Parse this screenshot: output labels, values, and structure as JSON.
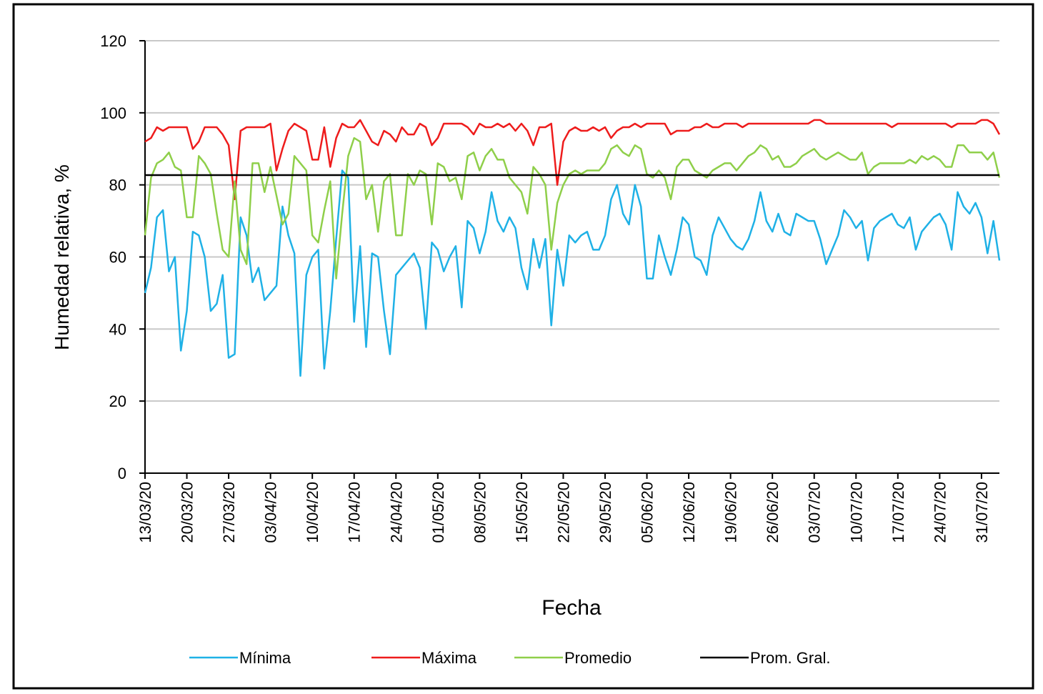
{
  "chart_data": {
    "type": "line",
    "xlabel": "Fecha",
    "ylabel": "Humedad relativa, %",
    "categories": [
      "13/03/20",
      null,
      null,
      null,
      null,
      null,
      null,
      "20/03/20",
      null,
      null,
      null,
      null,
      null,
      null,
      "27/03/20",
      null,
      null,
      null,
      null,
      null,
      null,
      "03/04/20",
      null,
      null,
      null,
      null,
      null,
      null,
      "10/04/20",
      null,
      null,
      null,
      null,
      null,
      null,
      "17/04/20",
      null,
      null,
      null,
      null,
      null,
      null,
      "24/04/20",
      null,
      null,
      null,
      null,
      null,
      null,
      "01/05/20",
      null,
      null,
      null,
      null,
      null,
      null,
      "08/05/20",
      null,
      null,
      null,
      null,
      null,
      null,
      "15/05/20",
      null,
      null,
      null,
      null,
      null,
      null,
      "22/05/20",
      null,
      null,
      null,
      null,
      null,
      null,
      "29/05/20",
      null,
      null,
      null,
      null,
      null,
      null,
      "05/06/20",
      null,
      null,
      null,
      null,
      null,
      null,
      "12/06/20",
      null,
      null,
      null,
      null,
      null,
      null,
      "19/06/20",
      null,
      null,
      null,
      null,
      null,
      null,
      "26/06/20",
      null,
      null,
      null,
      null,
      null,
      null,
      "03/07/20",
      null,
      null,
      null,
      null,
      null,
      null,
      "10/07/20",
      null,
      null,
      null,
      null,
      null,
      null,
      "17/07/20",
      null,
      null,
      null,
      null,
      null,
      null,
      "24/07/20",
      null,
      null,
      null,
      null,
      null,
      null,
      "31/07/20",
      null,
      null,
      null
    ],
    "series": [
      {
        "name": "Mínima",
        "color": "#1fb1e6",
        "values": [
          50,
          57,
          71,
          73,
          56,
          60,
          34,
          45,
          67,
          66,
          60,
          45,
          47,
          55,
          32,
          33,
          71,
          66,
          53,
          57,
          48,
          50,
          52,
          74,
          66,
          61,
          27,
          55,
          60,
          62,
          29,
          45,
          65,
          84,
          82,
          42,
          63,
          35,
          61,
          60,
          45,
          33,
          55,
          57,
          59,
          61,
          57,
          40,
          64,
          62,
          56,
          60,
          63,
          46,
          70,
          68,
          61,
          67,
          78,
          70,
          67,
          71,
          68,
          57,
          51,
          65,
          57,
          65,
          41,
          62,
          52,
          66,
          64,
          66,
          67,
          62,
          62,
          66,
          76,
          80,
          72,
          69,
          80,
          74,
          54,
          54,
          66,
          60,
          55,
          62,
          71,
          69,
          60,
          59,
          55,
          66,
          71,
          68,
          65,
          63,
          62,
          65,
          70,
          78,
          70,
          67,
          72,
          67,
          66,
          72,
          71,
          70,
          70,
          65,
          58,
          62,
          66,
          73,
          71,
          68,
          70,
          59,
          68,
          70,
          71,
          72,
          69,
          68,
          71,
          62,
          67,
          69,
          71,
          72,
          69,
          62,
          78,
          74,
          72,
          75,
          71,
          61,
          70,
          59
        ]
      },
      {
        "name": "Máxima",
        "color": "#ee1c1c",
        "values": [
          92,
          93,
          96,
          95,
          96,
          96,
          96,
          96,
          90,
          92,
          96,
          96,
          96,
          94,
          91,
          76,
          95,
          96,
          96,
          96,
          96,
          97,
          84,
          90,
          95,
          97,
          96,
          95,
          87,
          87,
          96,
          85,
          93,
          97,
          96,
          96,
          98,
          95,
          92,
          91,
          95,
          94,
          92,
          96,
          94,
          94,
          97,
          96,
          91,
          93,
          97,
          97,
          97,
          97,
          96,
          94,
          97,
          96,
          96,
          97,
          96,
          97,
          95,
          97,
          95,
          91,
          96,
          96,
          97,
          80,
          92,
          95,
          96,
          95,
          95,
          96,
          95,
          96,
          93,
          95,
          96,
          96,
          97,
          96,
          97,
          97,
          97,
          97,
          94,
          95,
          95,
          95,
          96,
          96,
          97,
          96,
          96,
          97,
          97,
          97,
          96,
          97,
          97,
          97,
          97,
          97,
          97,
          97,
          97,
          97,
          97,
          97,
          98,
          98,
          97,
          97,
          97,
          97,
          97,
          97,
          97,
          97,
          97,
          97,
          97,
          96,
          97,
          97,
          97,
          97,
          97,
          97,
          97,
          97,
          97,
          96,
          97,
          97,
          97,
          97,
          98,
          98,
          97,
          94
        ]
      },
      {
        "name": "Promedio",
        "color": "#8fcf4a",
        "values": [
          66,
          82,
          86,
          87,
          89,
          85,
          84,
          71,
          71,
          88,
          86,
          83,
          72,
          62,
          60,
          81,
          62,
          58,
          86,
          86,
          78,
          85,
          77,
          69,
          72,
          88,
          86,
          84,
          66,
          64,
          73,
          81,
          54,
          72,
          88,
          93,
          92,
          76,
          80,
          67,
          81,
          83,
          66,
          66,
          83,
          80,
          84,
          83,
          69,
          86,
          85,
          81,
          82,
          76,
          88,
          89,
          84,
          88,
          90,
          87,
          87,
          82,
          80,
          78,
          72,
          85,
          83,
          80,
          62,
          75,
          80,
          83,
          84,
          83,
          84,
          84,
          84,
          86,
          90,
          91,
          89,
          88,
          91,
          90,
          83,
          82,
          84,
          82,
          76,
          85,
          87,
          87,
          84,
          83,
          82,
          84,
          85,
          86,
          86,
          84,
          86,
          88,
          89,
          91,
          90,
          87,
          88,
          85,
          85,
          86,
          88,
          89,
          90,
          88,
          87,
          88,
          89,
          88,
          87,
          87,
          89,
          83,
          85,
          86,
          86,
          86,
          86,
          86,
          87,
          86,
          88,
          87,
          88,
          87,
          85,
          85,
          91,
          91,
          89,
          89,
          89,
          87,
          89,
          82
        ]
      }
    ],
    "reference_lines": [
      {
        "name": "Prom. Gral.",
        "color": "#000000",
        "value": 82.7
      }
    ],
    "ylim": [
      0,
      120
    ],
    "yticks": [
      0,
      20,
      40,
      60,
      80,
      100,
      120
    ],
    "grid": true
  }
}
